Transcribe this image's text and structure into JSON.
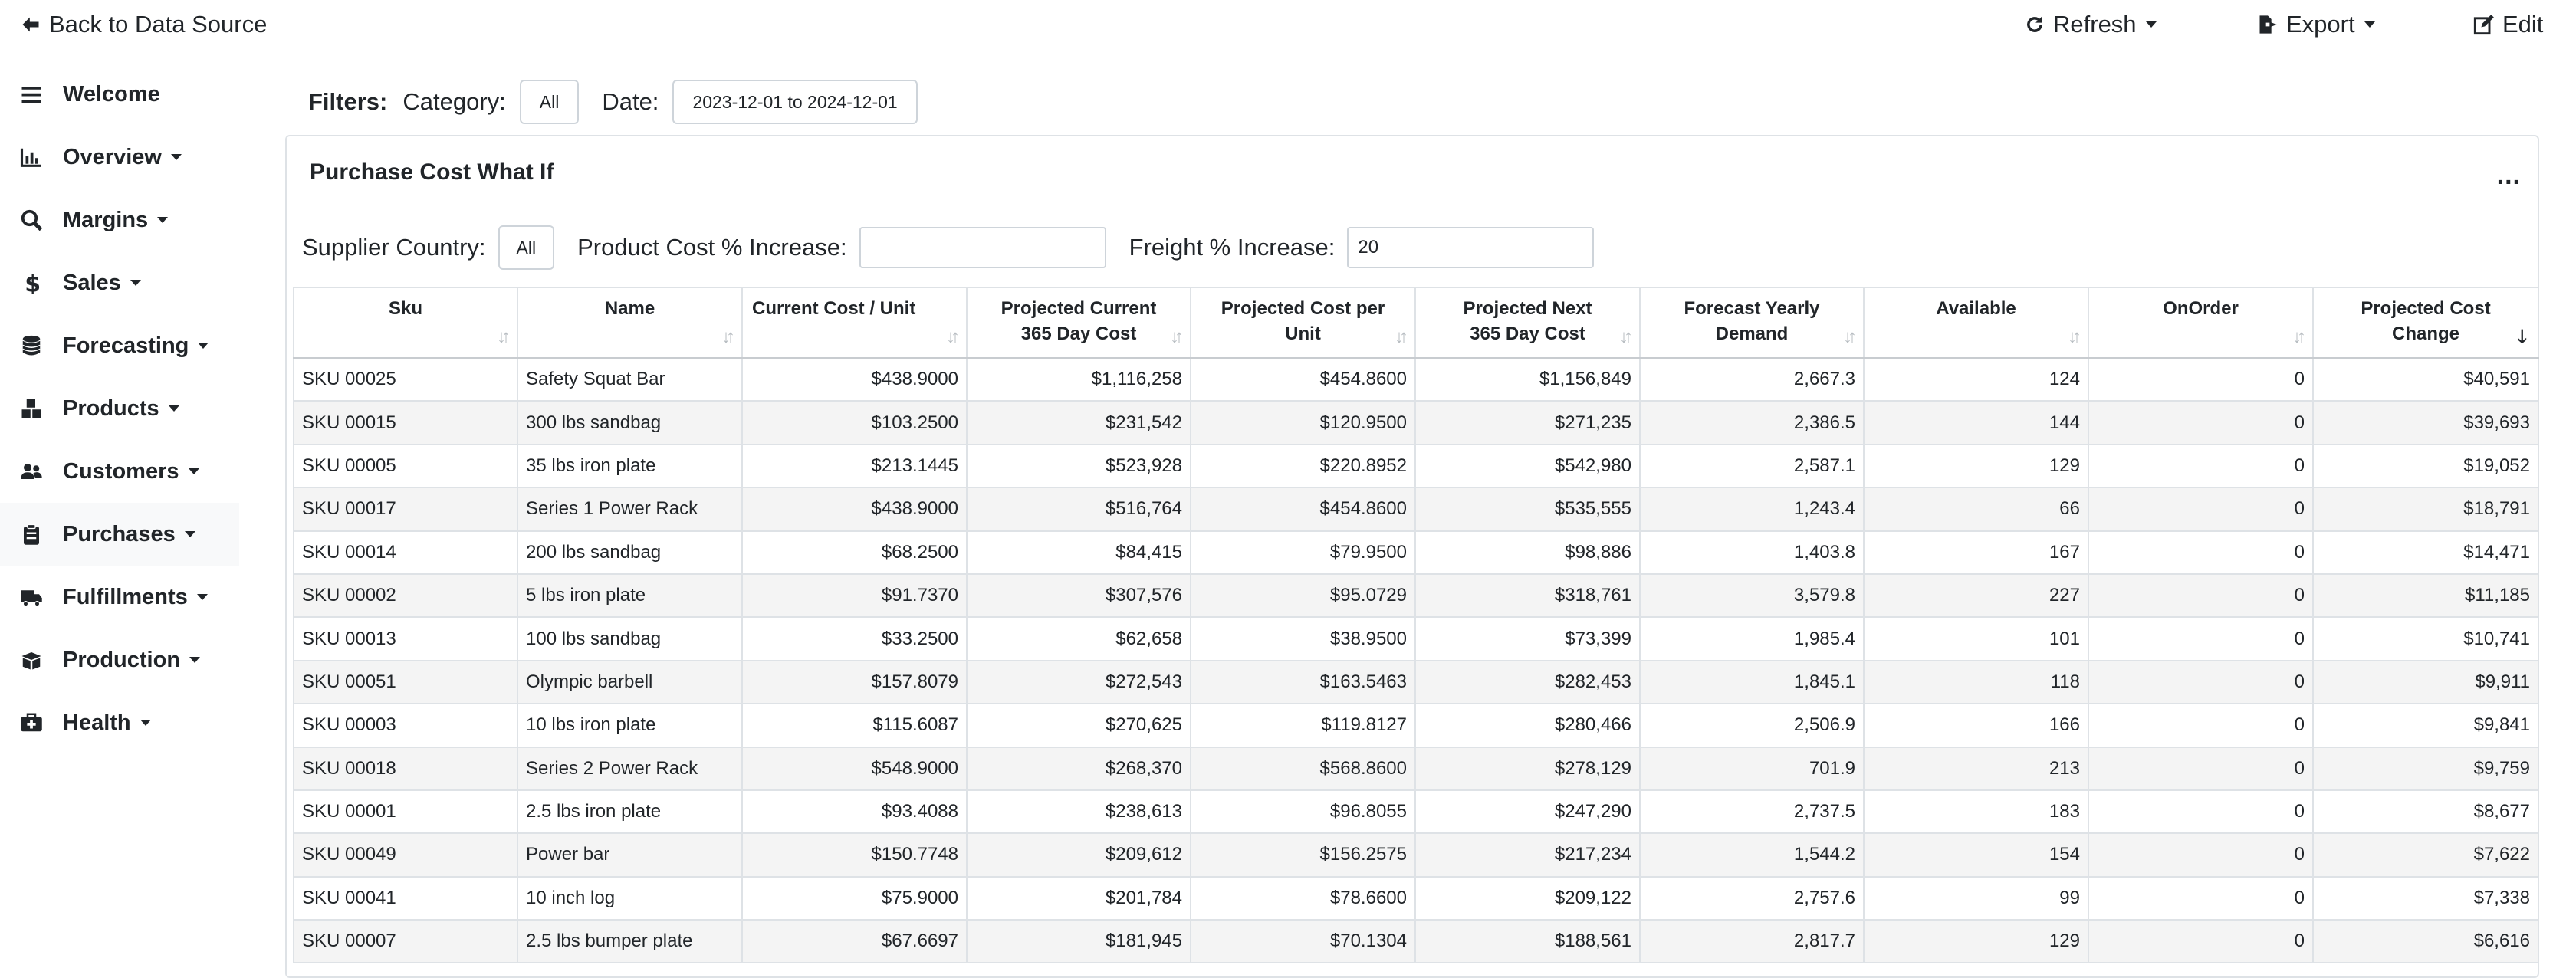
{
  "topbar": {
    "back_label": "Back to Data Source",
    "refresh_label": "Refresh",
    "export_label": "Export",
    "edit_label": "Edit"
  },
  "sidebar": {
    "items": [
      {
        "label": "Welcome",
        "icon": "bars-icon"
      },
      {
        "label": "Overview",
        "icon": "chart-bar-icon"
      },
      {
        "label": "Margins",
        "icon": "search-dollar-icon"
      },
      {
        "label": "Sales",
        "icon": "dollar-icon"
      },
      {
        "label": "Forecasting",
        "icon": "database-icon"
      },
      {
        "label": "Products",
        "icon": "boxes-icon"
      },
      {
        "label": "Customers",
        "icon": "users-icon"
      },
      {
        "label": "Purchases",
        "icon": "clipboard-icon"
      },
      {
        "label": "Fulfillments",
        "icon": "truck-icon"
      },
      {
        "label": "Production",
        "icon": "box-open-icon"
      },
      {
        "label": "Health",
        "icon": "medkit-icon"
      }
    ]
  },
  "filters": {
    "label": "Filters:",
    "category_label": "Category:",
    "category_value": "All",
    "date_label": "Date:",
    "date_value": "2023-12-01 to 2024-12-01"
  },
  "card": {
    "title": "Purchase Cost What If",
    "menu": "..."
  },
  "params": {
    "supplier_label": "Supplier Country:",
    "supplier_value": "All",
    "product_cost_label": "Product Cost % Increase:",
    "product_cost_value": "",
    "freight_label": "Freight % Increase:",
    "freight_value": "20"
  },
  "table": {
    "columns": [
      {
        "l1": "Sku",
        "l2": ""
      },
      {
        "l1": "Name",
        "l2": ""
      },
      {
        "l1": "Current Cost / Unit",
        "l2": ""
      },
      {
        "l1": "Projected Current",
        "l2": "365 Day Cost"
      },
      {
        "l1": "Projected Cost per",
        "l2": "Unit"
      },
      {
        "l1": "Projected Next",
        "l2": "365 Day Cost"
      },
      {
        "l1": "Forecast Yearly",
        "l2": "Demand"
      },
      {
        "l1": "Available",
        "l2": ""
      },
      {
        "l1": "OnOrder",
        "l2": ""
      },
      {
        "l1": "Projected Cost",
        "l2": "Change"
      }
    ],
    "rows": [
      [
        "SKU 00025",
        "Safety Squat Bar",
        "$438.9000",
        "$1,116,258",
        "$454.8600",
        "$1,156,849",
        "2,667.3",
        "124",
        "0",
        "$40,591"
      ],
      [
        "SKU 00015",
        "300 lbs sandbag",
        "$103.2500",
        "$231,542",
        "$120.9500",
        "$271,235",
        "2,386.5",
        "144",
        "0",
        "$39,693"
      ],
      [
        "SKU 00005",
        "35 lbs iron plate",
        "$213.1445",
        "$523,928",
        "$220.8952",
        "$542,980",
        "2,587.1",
        "129",
        "0",
        "$19,052"
      ],
      [
        "SKU 00017",
        "Series 1 Power Rack",
        "$438.9000",
        "$516,764",
        "$454.8600",
        "$535,555",
        "1,243.4",
        "66",
        "0",
        "$18,791"
      ],
      [
        "SKU 00014",
        "200 lbs sandbag",
        "$68.2500",
        "$84,415",
        "$79.9500",
        "$98,886",
        "1,403.8",
        "167",
        "0",
        "$14,471"
      ],
      [
        "SKU 00002",
        "5 lbs iron plate",
        "$91.7370",
        "$307,576",
        "$95.0729",
        "$318,761",
        "3,579.8",
        "227",
        "0",
        "$11,185"
      ],
      [
        "SKU 00013",
        "100 lbs sandbag",
        "$33.2500",
        "$62,658",
        "$38.9500",
        "$73,399",
        "1,985.4",
        "101",
        "0",
        "$10,741"
      ],
      [
        "SKU 00051",
        "Olympic barbell",
        "$157.8079",
        "$272,543",
        "$163.5463",
        "$282,453",
        "1,845.1",
        "118",
        "0",
        "$9,911"
      ],
      [
        "SKU 00003",
        "10 lbs iron plate",
        "$115.6087",
        "$270,625",
        "$119.8127",
        "$280,466",
        "2,506.9",
        "166",
        "0",
        "$9,841"
      ],
      [
        "SKU 00018",
        "Series 2 Power Rack",
        "$548.9000",
        "$268,370",
        "$568.8600",
        "$278,129",
        "701.9",
        "213",
        "0",
        "$9,759"
      ],
      [
        "SKU 00001",
        "2.5 lbs iron plate",
        "$93.4088",
        "$238,613",
        "$96.8055",
        "$247,290",
        "2,737.5",
        "183",
        "0",
        "$8,677"
      ],
      [
        "SKU 00049",
        "Power bar",
        "$150.7748",
        "$209,612",
        "$156.2575",
        "$217,234",
        "1,544.2",
        "154",
        "0",
        "$7,622"
      ],
      [
        "SKU 00041",
        "10 inch log",
        "$75.9000",
        "$201,784",
        "$78.6600",
        "$209,122",
        "2,757.6",
        "99",
        "0",
        "$7,338"
      ],
      [
        "SKU 00007",
        "2.5 lbs bumper plate",
        "$67.6697",
        "$181,945",
        "$70.1304",
        "$188,561",
        "2,817.7",
        "129",
        "0",
        "$6,616"
      ]
    ]
  }
}
